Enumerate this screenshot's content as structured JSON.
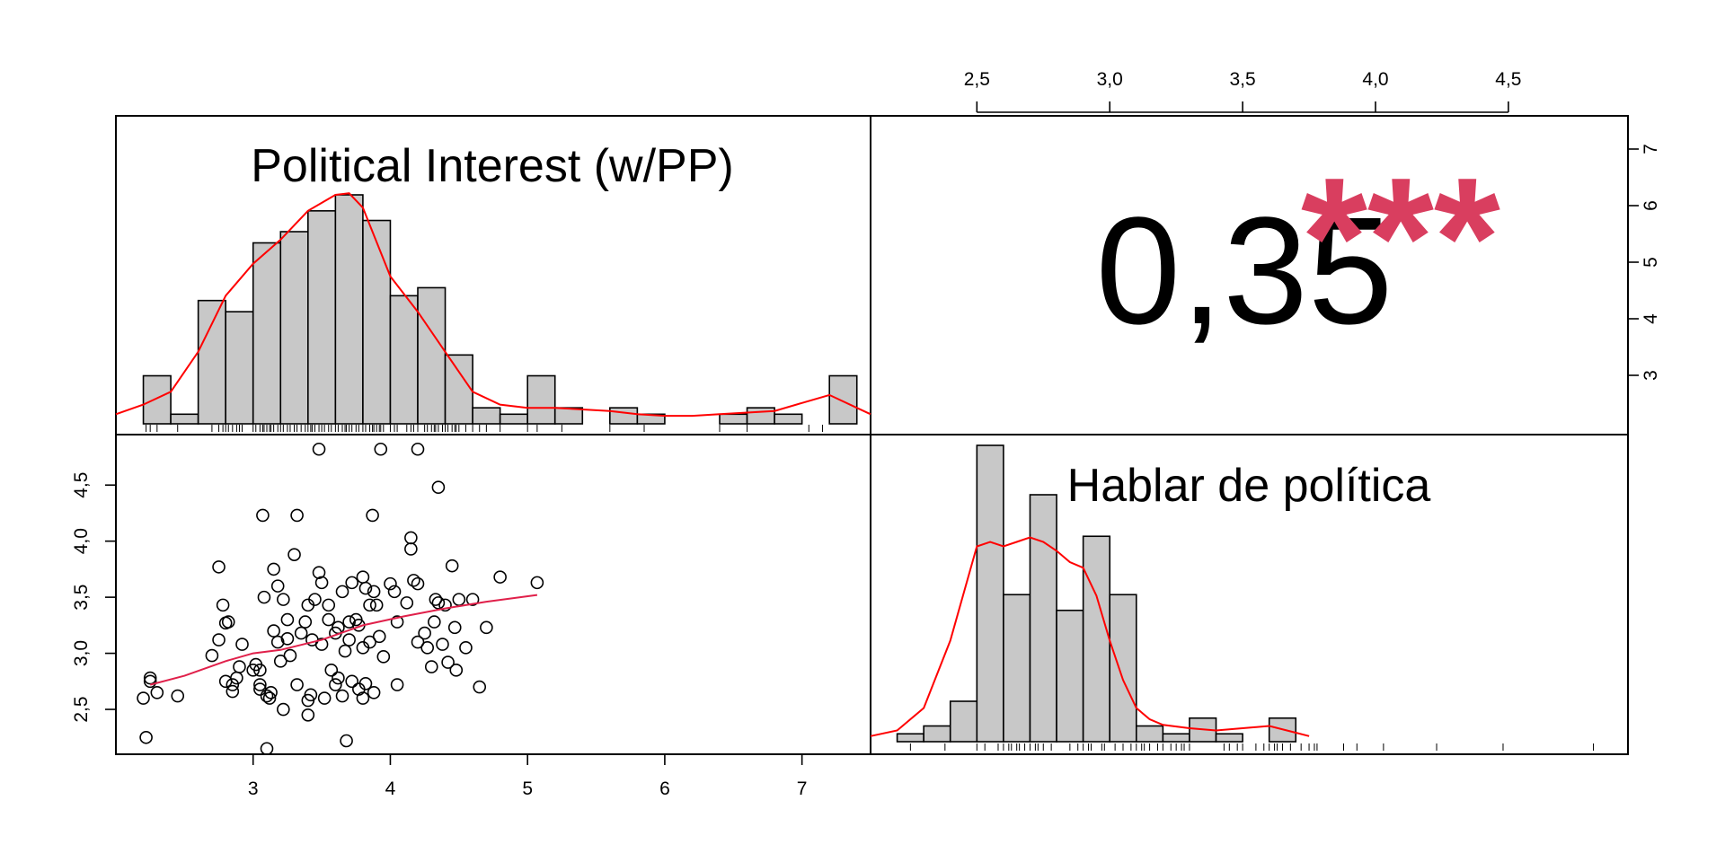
{
  "chart_data": {
    "type": "scatter-matrix",
    "variables": [
      "Political Interest (w/PP)",
      "Hablar de política"
    ],
    "titles": {
      "var1": "Political Interest (w/PP)",
      "var2": "Hablar de política"
    },
    "correlation": {
      "value": "0,35",
      "stars": "***"
    },
    "axes": {
      "var1": {
        "range": [
          2.0,
          7.5
        ],
        "ticks": [
          3,
          4,
          5,
          6,
          7
        ],
        "tick_labels": [
          "3",
          "4",
          "5",
          "6",
          "7"
        ]
      },
      "var2": {
        "range": [
          2.1,
          4.95
        ],
        "ticks": [
          2.5,
          3.0,
          3.5,
          4.0,
          4.5
        ],
        "tick_labels": [
          "2,5",
          "3,0",
          "3,5",
          "4,0",
          "4,5"
        ]
      },
      "var1_right": {
        "ticks": [
          3,
          4,
          5,
          6,
          7
        ],
        "tick_labels": [
          "3",
          "4",
          "5",
          "6",
          "7"
        ]
      }
    },
    "histogram_var1": {
      "bin_width": 0.2,
      "bins": [
        {
          "start": 2.2,
          "end": 2.4,
          "density": 0.3
        },
        {
          "start": 2.4,
          "end": 2.6,
          "density": 0.06
        },
        {
          "start": 2.6,
          "end": 2.8,
          "density": 0.77
        },
        {
          "start": 2.8,
          "end": 3.0,
          "density": 0.7
        },
        {
          "start": 3.0,
          "end": 3.2,
          "density": 1.13
        },
        {
          "start": 3.2,
          "end": 3.4,
          "density": 1.2
        },
        {
          "start": 3.4,
          "end": 3.6,
          "density": 1.33
        },
        {
          "start": 3.6,
          "end": 3.8,
          "density": 1.43
        },
        {
          "start": 3.8,
          "end": 4.0,
          "density": 1.27
        },
        {
          "start": 4.0,
          "end": 4.2,
          "density": 0.8
        },
        {
          "start": 4.2,
          "end": 4.4,
          "density": 0.85
        },
        {
          "start": 4.4,
          "end": 4.6,
          "density": 0.43
        },
        {
          "start": 4.6,
          "end": 4.8,
          "density": 0.1
        },
        {
          "start": 4.8,
          "end": 5.0,
          "density": 0.06
        },
        {
          "start": 5.0,
          "end": 5.2,
          "density": 0.3
        },
        {
          "start": 5.2,
          "end": 5.4,
          "density": 0.1
        },
        {
          "start": 5.4,
          "end": 5.6,
          "density": 0.0
        },
        {
          "start": 5.6,
          "end": 5.8,
          "density": 0.1
        },
        {
          "start": 5.8,
          "end": 6.0,
          "density": 0.06
        },
        {
          "start": 6.0,
          "end": 6.2,
          "density": 0.0
        },
        {
          "start": 6.2,
          "end": 6.4,
          "density": 0.0
        },
        {
          "start": 6.4,
          "end": 6.6,
          "density": 0.06
        },
        {
          "start": 6.6,
          "end": 6.8,
          "density": 0.1
        },
        {
          "start": 6.8,
          "end": 7.0,
          "density": 0.06
        },
        {
          "start": 7.0,
          "end": 7.2,
          "density": 0.0
        },
        {
          "start": 7.2,
          "end": 7.4,
          "density": 0.3
        }
      ],
      "density_curve": {
        "x": [
          2.0,
          2.2,
          2.4,
          2.6,
          2.8,
          3.0,
          3.2,
          3.4,
          3.6,
          3.7,
          3.8,
          4.0,
          4.2,
          4.4,
          4.6,
          4.8,
          5.0,
          5.2,
          5.4,
          5.6,
          5.8,
          6.0,
          6.2,
          6.4,
          6.6,
          6.8,
          7.0,
          7.2,
          7.4,
          7.5
        ],
        "y": [
          0.06,
          0.12,
          0.2,
          0.45,
          0.8,
          1.0,
          1.15,
          1.33,
          1.43,
          1.44,
          1.35,
          0.92,
          0.7,
          0.45,
          0.2,
          0.12,
          0.1,
          0.1,
          0.09,
          0.08,
          0.06,
          0.05,
          0.05,
          0.06,
          0.07,
          0.08,
          0.13,
          0.18,
          0.1,
          0.06
        ]
      }
    },
    "histogram_var2": {
      "bin_width": 0.1,
      "bins": [
        {
          "start": 2.2,
          "end": 2.3,
          "density": 0.07
        },
        {
          "start": 2.3,
          "end": 2.4,
          "density": 0.14
        },
        {
          "start": 2.4,
          "end": 2.5,
          "density": 0.36
        },
        {
          "start": 2.5,
          "end": 2.6,
          "density": 2.64
        },
        {
          "start": 2.6,
          "end": 2.7,
          "density": 1.31
        },
        {
          "start": 2.7,
          "end": 2.8,
          "density": 2.2
        },
        {
          "start": 2.8,
          "end": 2.9,
          "density": 1.17
        },
        {
          "start": 2.9,
          "end": 3.0,
          "density": 1.83
        },
        {
          "start": 3.0,
          "end": 3.1,
          "density": 1.31
        },
        {
          "start": 3.1,
          "end": 3.2,
          "density": 0.14
        },
        {
          "start": 3.2,
          "end": 3.3,
          "density": 0.07
        },
        {
          "start": 3.3,
          "end": 3.4,
          "density": 0.21
        },
        {
          "start": 3.4,
          "end": 3.5,
          "density": 0.07
        },
        {
          "start": 3.5,
          "end": 3.6,
          "density": 0.0
        },
        {
          "start": 3.6,
          "end": 3.7,
          "density": 0.21
        }
      ],
      "density_curve": {
        "x": [
          2.1,
          2.2,
          2.3,
          2.4,
          2.5,
          2.55,
          2.6,
          2.65,
          2.7,
          2.75,
          2.8,
          2.85,
          2.9,
          2.95,
          3.0,
          3.05,
          3.1,
          3.15,
          3.2,
          3.3,
          3.4,
          3.5,
          3.6,
          3.7,
          3.75
        ],
        "y": [
          0.05,
          0.1,
          0.3,
          0.9,
          1.74,
          1.78,
          1.74,
          1.78,
          1.82,
          1.78,
          1.7,
          1.6,
          1.55,
          1.3,
          0.9,
          0.55,
          0.3,
          0.2,
          0.15,
          0.12,
          0.1,
          0.12,
          0.14,
          0.08,
          0.05
        ]
      }
    },
    "scatter": {
      "x_variable": "Political Interest (w/PP)",
      "y_variable": "Hablar de política",
      "points": [
        [
          2.2,
          2.6
        ],
        [
          2.22,
          2.25
        ],
        [
          2.25,
          2.75
        ],
        [
          2.25,
          2.78
        ],
        [
          2.3,
          2.65
        ],
        [
          2.45,
          2.62
        ],
        [
          2.7,
          2.98
        ],
        [
          2.75,
          3.12
        ],
        [
          2.75,
          3.77
        ],
        [
          2.78,
          3.43
        ],
        [
          2.8,
          2.75
        ],
        [
          2.8,
          3.27
        ],
        [
          2.82,
          3.28
        ],
        [
          2.85,
          2.72
        ],
        [
          2.85,
          2.66
        ],
        [
          2.88,
          2.78
        ],
        [
          2.9,
          2.88
        ],
        [
          2.92,
          3.08
        ],
        [
          3.0,
          2.85
        ],
        [
          3.02,
          2.9
        ],
        [
          3.05,
          2.85
        ],
        [
          3.05,
          2.72
        ],
        [
          3.05,
          2.68
        ],
        [
          3.07,
          4.23
        ],
        [
          3.08,
          3.5
        ],
        [
          3.1,
          2.62
        ],
        [
          3.1,
          2.15
        ],
        [
          3.12,
          2.6
        ],
        [
          3.13,
          2.65
        ],
        [
          3.15,
          3.2
        ],
        [
          3.15,
          3.75
        ],
        [
          3.18,
          3.1
        ],
        [
          3.18,
          3.6
        ],
        [
          3.2,
          2.93
        ],
        [
          3.22,
          3.48
        ],
        [
          3.22,
          2.5
        ],
        [
          3.25,
          3.3
        ],
        [
          3.25,
          3.13
        ],
        [
          3.27,
          2.98
        ],
        [
          3.3,
          3.88
        ],
        [
          3.32,
          2.72
        ],
        [
          3.32,
          4.23
        ],
        [
          3.35,
          3.18
        ],
        [
          3.38,
          3.28
        ],
        [
          3.4,
          3.43
        ],
        [
          3.4,
          2.58
        ],
        [
          3.4,
          2.45
        ],
        [
          3.42,
          2.63
        ],
        [
          3.43,
          3.12
        ],
        [
          3.45,
          3.48
        ],
        [
          3.48,
          3.72
        ],
        [
          3.48,
          4.82
        ],
        [
          3.5,
          3.08
        ],
        [
          3.5,
          3.63
        ],
        [
          3.52,
          2.6
        ],
        [
          3.55,
          3.3
        ],
        [
          3.55,
          3.43
        ],
        [
          3.57,
          2.85
        ],
        [
          3.6,
          3.18
        ],
        [
          3.6,
          2.72
        ],
        [
          3.62,
          2.78
        ],
        [
          3.62,
          3.23
        ],
        [
          3.65,
          2.62
        ],
        [
          3.65,
          3.55
        ],
        [
          3.67,
          3.02
        ],
        [
          3.68,
          2.22
        ],
        [
          3.7,
          3.28
        ],
        [
          3.7,
          3.12
        ],
        [
          3.72,
          2.75
        ],
        [
          3.72,
          3.63
        ],
        [
          3.75,
          3.3
        ],
        [
          3.77,
          2.68
        ],
        [
          3.77,
          3.25
        ],
        [
          3.8,
          3.05
        ],
        [
          3.8,
          3.68
        ],
        [
          3.8,
          2.6
        ],
        [
          3.82,
          2.73
        ],
        [
          3.82,
          3.58
        ],
        [
          3.85,
          3.1
        ],
        [
          3.85,
          3.43
        ],
        [
          3.87,
          4.23
        ],
        [
          3.88,
          2.65
        ],
        [
          3.88,
          3.55
        ],
        [
          3.9,
          3.43
        ],
        [
          3.92,
          3.15
        ],
        [
          3.93,
          4.82
        ],
        [
          3.95,
          2.97
        ],
        [
          4.0,
          3.62
        ],
        [
          4.03,
          3.55
        ],
        [
          4.05,
          3.28
        ],
        [
          4.05,
          2.72
        ],
        [
          4.12,
          3.45
        ],
        [
          4.15,
          4.03
        ],
        [
          4.15,
          3.93
        ],
        [
          4.17,
          3.65
        ],
        [
          4.2,
          3.62
        ],
        [
          4.2,
          3.1
        ],
        [
          4.2,
          4.82
        ],
        [
          4.25,
          3.18
        ],
        [
          4.27,
          3.05
        ],
        [
          4.3,
          2.88
        ],
        [
          4.32,
          3.28
        ],
        [
          4.33,
          3.48
        ],
        [
          4.35,
          3.45
        ],
        [
          4.35,
          4.48
        ],
        [
          4.38,
          3.08
        ],
        [
          4.4,
          3.43
        ],
        [
          4.42,
          2.92
        ],
        [
          4.45,
          3.78
        ],
        [
          4.47,
          3.23
        ],
        [
          4.48,
          2.85
        ],
        [
          4.5,
          3.48
        ],
        [
          4.55,
          3.05
        ],
        [
          4.6,
          3.48
        ],
        [
          4.65,
          2.7
        ],
        [
          4.7,
          3.23
        ],
        [
          4.8,
          3.68
        ],
        [
          5.07,
          3.63
        ]
      ],
      "smoother": {
        "x": [
          2.25,
          2.5,
          2.8,
          3.0,
          3.2,
          3.5,
          3.8,
          4.1,
          4.4,
          4.7,
          5.07
        ],
        "y": [
          2.72,
          2.8,
          2.93,
          3.0,
          3.03,
          3.12,
          3.25,
          3.33,
          3.4,
          3.46,
          3.52
        ]
      }
    },
    "rug_var1": [
      2.22,
      2.25,
      2.3,
      2.45,
      2.7,
      2.75,
      2.78,
      2.8,
      2.82,
      2.85,
      2.88,
      2.9,
      2.92,
      3.0,
      3.02,
      3.05,
      3.07,
      3.08,
      3.1,
      3.12,
      3.13,
      3.15,
      3.18,
      3.2,
      3.22,
      3.25,
      3.27,
      3.3,
      3.32,
      3.35,
      3.38,
      3.4,
      3.42,
      3.43,
      3.45,
      3.48,
      3.5,
      3.52,
      3.55,
      3.57,
      3.6,
      3.62,
      3.65,
      3.67,
      3.68,
      3.7,
      3.72,
      3.75,
      3.77,
      3.8,
      3.82,
      3.85,
      3.87,
      3.88,
      3.9,
      3.92,
      3.93,
      3.95,
      4.0,
      4.03,
      4.05,
      4.12,
      4.15,
      4.17,
      4.2,
      4.25,
      4.27,
      4.3,
      4.32,
      4.33,
      4.35,
      4.38,
      4.4,
      4.42,
      4.45,
      4.47,
      4.48,
      4.5,
      4.55,
      4.6,
      4.65,
      4.7,
      4.8,
      5.0,
      5.07,
      5.25,
      5.6,
      5.85,
      6.4,
      6.6,
      7.05,
      7.15
    ],
    "rug_var2": [
      2.25,
      2.38,
      2.5,
      2.53,
      2.58,
      2.6,
      2.62,
      2.63,
      2.65,
      2.66,
      2.68,
      2.7,
      2.72,
      2.73,
      2.75,
      2.78,
      2.85,
      2.88,
      2.9,
      2.92,
      2.93,
      2.97,
      2.98,
      3.02,
      3.05,
      3.08,
      3.1,
      3.12,
      3.13,
      3.15,
      3.18,
      3.2,
      3.23,
      3.25,
      3.27,
      3.28,
      3.3,
      3.43,
      3.45,
      3.48,
      3.5,
      3.55,
      3.58,
      3.6,
      3.62,
      3.63,
      3.65,
      3.68,
      3.72,
      3.75,
      3.77,
      3.78,
      3.88,
      3.93,
      4.03,
      4.23,
      4.48,
      4.82
    ]
  }
}
